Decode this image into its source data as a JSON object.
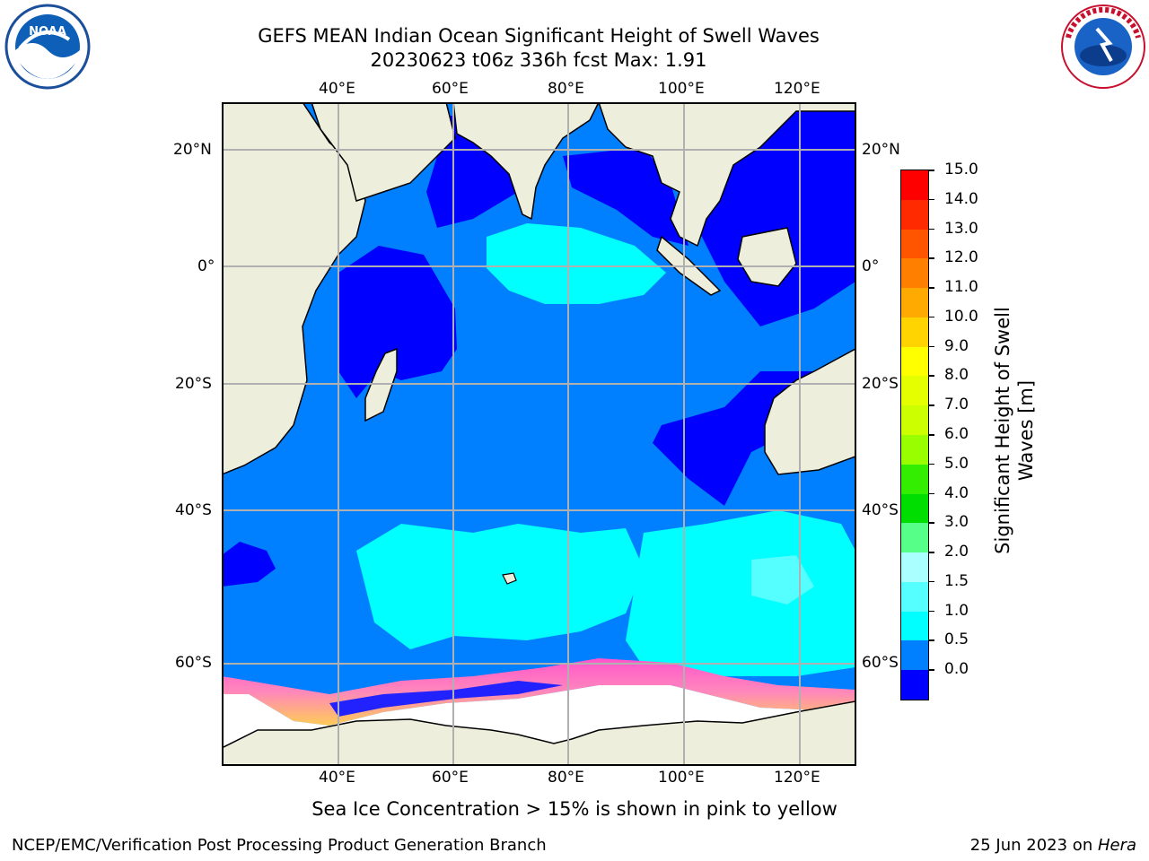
{
  "header": {
    "title_line1": "GEFS MEAN Indian Ocean Significant Height of Swell Waves",
    "title_line2": "20230623 t06z 336h fcst   Max: 1.91"
  },
  "logos": {
    "noaa": {
      "text": "NOAA",
      "ring_text": "NATIONAL OCEANIC AND ATMOSPHERIC ADMINISTRATION · U.S. DEPARTMENT OF COMMERCE"
    },
    "nws": {
      "ring_text": "NATIONAL WEATHER SERVICE"
    }
  },
  "map": {
    "lon_ticks": [
      "40°E",
      "60°E",
      "80°E",
      "100°E",
      "120°E"
    ],
    "lat_ticks": [
      "20°N",
      "0°",
      "20°S",
      "40°S",
      "60°S"
    ],
    "colors": {
      "land": "#eeeedc",
      "ice": "#ffffff",
      "grid": "#b0b0b0"
    }
  },
  "colorbar": {
    "label": "Significant Height of Swell Waves [m]",
    "ticks": [
      "15.0",
      "14.0",
      "13.0",
      "12.0",
      "11.0",
      "10.0",
      "9.0",
      "8.0",
      "7.0",
      "6.0",
      "5.0",
      "4.0",
      "3.0",
      "2.0",
      "1.5",
      "1.0",
      "0.5",
      "0.0"
    ],
    "colors_top_to_bottom": [
      "#ff0000",
      "#ff2a00",
      "#ff5500",
      "#ff7f00",
      "#ffaa00",
      "#ffd400",
      "#ffff00",
      "#e5ff00",
      "#ccff00",
      "#99ff00",
      "#33ee00",
      "#00dd00",
      "#55ff88",
      "#aaffff",
      "#55ffff",
      "#00ffff",
      "#0080ff",
      "#0000ff"
    ]
  },
  "notes": {
    "sea_ice": "Sea Ice Concentration > 15% is shown in pink to yellow"
  },
  "footer": {
    "left": "NCEP/EMC/Verification Post Processing Product Generation Branch",
    "right_prefix": "25 Jun 2023 on ",
    "right_host": "Hera"
  }
}
